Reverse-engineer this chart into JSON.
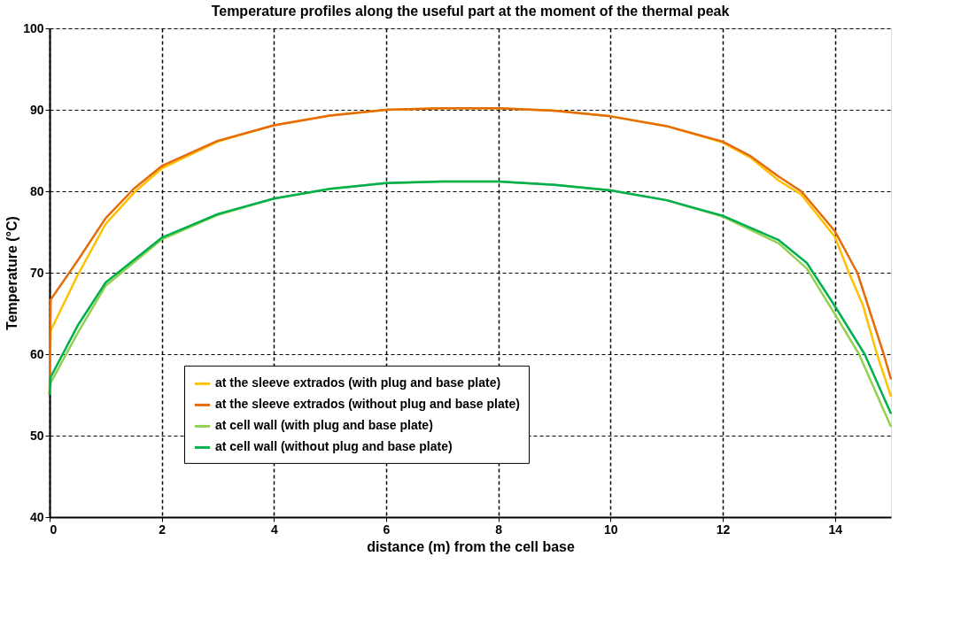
{
  "chart_data": {
    "type": "line",
    "title": "Temperature profiles along the useful part at the moment of the thermal peak",
    "xlabel": "distance (m) from the cell base",
    "ylabel": "Temperature (°C)",
    "xlim": [
      0,
      15
    ],
    "xticks": [
      0,
      2,
      4,
      6,
      8,
      10,
      12,
      14
    ],
    "ylim": [
      40,
      100
    ],
    "yticks": [
      40,
      50,
      60,
      70,
      80,
      90,
      100
    ],
    "grid": true,
    "legend": "bottom",
    "marker": "none",
    "series": [
      {
        "name": "at the sleeve extrados (with plug and base plate)",
        "color": "#ffc000",
        "x": [
          0,
          0.02,
          0.5,
          1,
          1.5,
          2,
          3,
          4,
          5,
          6,
          7,
          8,
          9,
          10,
          11,
          12,
          12.5,
          13,
          13.4,
          14,
          14.25,
          14.5,
          14.75,
          15
        ],
        "values": [
          55,
          62.9,
          69.7,
          76,
          79.8,
          82.8,
          86.1,
          88.1,
          89.3,
          90,
          90.2,
          90.2,
          89.9,
          89.2,
          88,
          86,
          84.1,
          81.3,
          79.6,
          74.4,
          70,
          66,
          60,
          54.8
        ]
      },
      {
        "name": "at the sleeve extrados (without plug and base plate)",
        "color": "#e46c0a",
        "x": [
          0,
          0.02,
          0.5,
          1,
          1.5,
          2,
          3,
          4,
          5,
          6,
          7,
          8,
          9,
          10,
          11,
          12,
          12.5,
          13,
          13.4,
          14,
          14.4,
          14.87,
          15
        ],
        "values": [
          55,
          66.7,
          71.5,
          76.7,
          80.3,
          83.1,
          86.2,
          88.1,
          89.3,
          90,
          90.2,
          90.2,
          89.9,
          89.2,
          88,
          86.1,
          84.3,
          81.8,
          80,
          75.1,
          70,
          60,
          56.9
        ]
      },
      {
        "name": "at cell wall (with plug and base plate)",
        "color": "#92d050",
        "x": [
          0,
          0.02,
          0.5,
          1,
          2,
          3,
          4,
          5,
          6,
          7,
          8,
          9,
          10,
          11,
          12,
          13,
          13.5,
          14,
          14.43,
          15
        ],
        "values": [
          55,
          56.5,
          62.6,
          68.4,
          74.1,
          77.1,
          79.1,
          80.3,
          81,
          81.2,
          81.2,
          80.8,
          80.1,
          78.9,
          76.9,
          73.6,
          70.5,
          64.9,
          60,
          51.1
        ]
      },
      {
        "name": "at cell wall (without plug and base plate)",
        "color": "#00b050",
        "x": [
          0,
          0.02,
          0.5,
          1,
          2,
          3,
          4,
          5,
          6,
          7,
          8,
          9,
          10,
          11,
          12,
          13,
          13.5,
          14,
          14.53,
          15
        ],
        "values": [
          55,
          57.2,
          63.5,
          68.8,
          74.3,
          77.2,
          79.1,
          80.3,
          81,
          81.2,
          81.2,
          80.8,
          80.1,
          78.9,
          77,
          74,
          71.2,
          65.9,
          60,
          52.7
        ]
      }
    ]
  }
}
